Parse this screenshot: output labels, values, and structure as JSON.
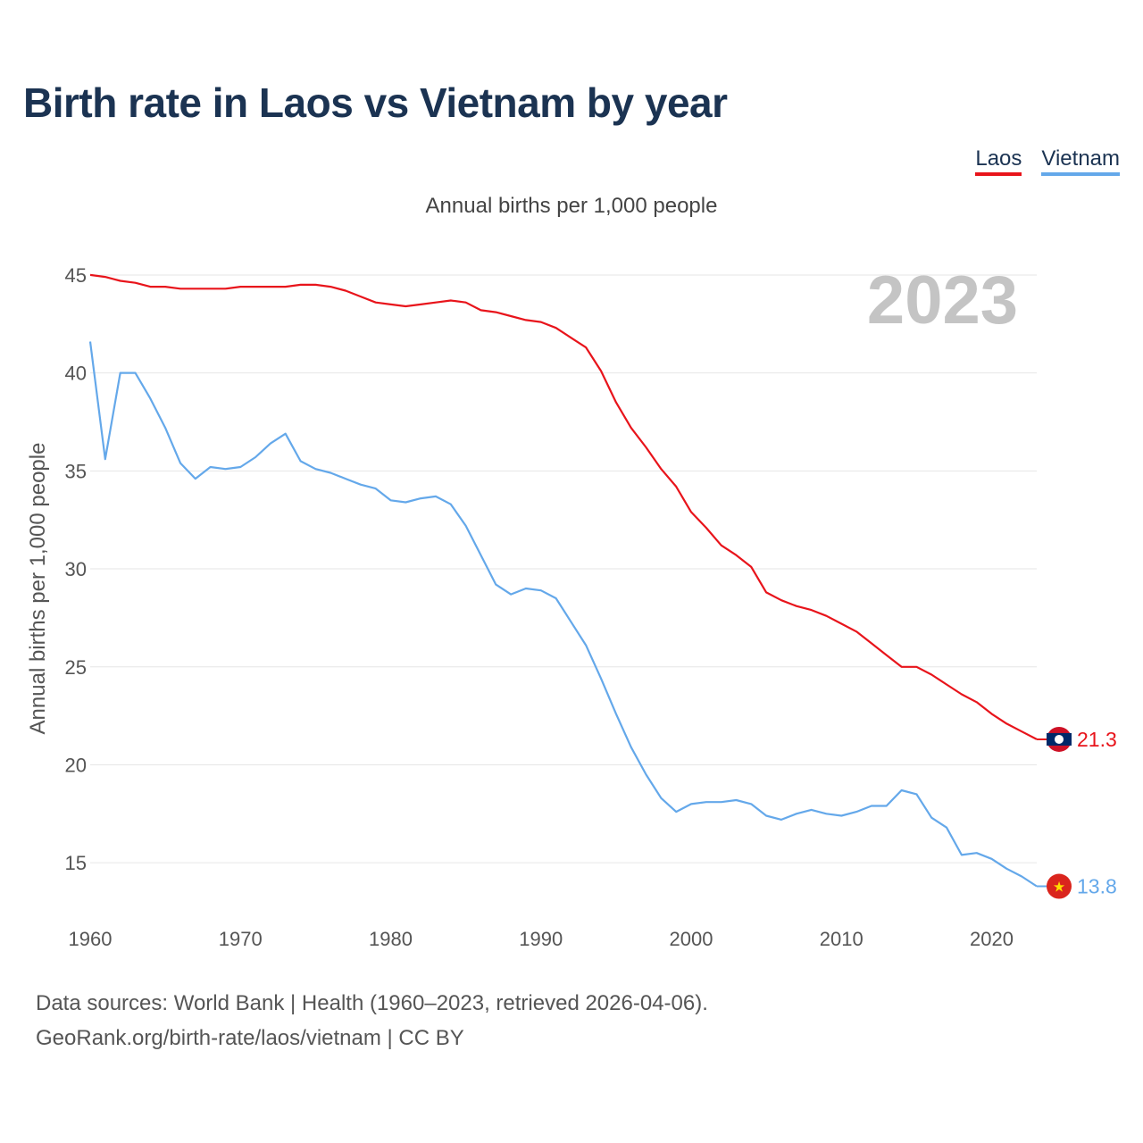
{
  "title": "Birth rate in Laos vs Vietnam by year",
  "subtitle": "Annual births per 1,000 people",
  "legend": [
    {
      "name": "Laos",
      "color": "#e8141b"
    },
    {
      "name": "Vietnam",
      "color": "#64a8ea"
    }
  ],
  "footer": {
    "line1": "Data sources: World Bank | Health (1960–2023, retrieved 2026-04-06).",
    "line2": "GeoRank.org/birth-rate/laos/vietnam | CC BY"
  },
  "chart_data": {
    "type": "line",
    "title": "Birth rate in Laos vs Vietnam by year",
    "xlabel": "",
    "ylabel": "Annual births per 1,000 people",
    "xlim": [
      1960,
      2023
    ],
    "ylim": [
      12,
      46
    ],
    "xticks": [
      1960,
      1970,
      1980,
      1990,
      2000,
      2010,
      2020
    ],
    "yticks": [
      15,
      20,
      25,
      30,
      35,
      40,
      45
    ],
    "grid": true,
    "year_label": "2023",
    "series": [
      {
        "name": "Laos",
        "color": "#e8141b",
        "end_label": "21.3",
        "x": [
          1960,
          1961,
          1962,
          1963,
          1964,
          1965,
          1966,
          1967,
          1968,
          1969,
          1970,
          1971,
          1972,
          1973,
          1974,
          1975,
          1976,
          1977,
          1978,
          1979,
          1980,
          1981,
          1982,
          1983,
          1984,
          1985,
          1986,
          1987,
          1988,
          1989,
          1990,
          1991,
          1992,
          1993,
          1994,
          1995,
          1996,
          1997,
          1998,
          1999,
          2000,
          2001,
          2002,
          2003,
          2004,
          2005,
          2006,
          2007,
          2008,
          2009,
          2010,
          2011,
          2012,
          2013,
          2014,
          2015,
          2016,
          2017,
          2018,
          2019,
          2020,
          2021,
          2022,
          2023
        ],
        "values": [
          45.0,
          44.9,
          44.7,
          44.6,
          44.4,
          44.4,
          44.3,
          44.3,
          44.3,
          44.3,
          44.4,
          44.4,
          44.4,
          44.4,
          44.5,
          44.5,
          44.4,
          44.2,
          43.9,
          43.6,
          43.5,
          43.4,
          43.5,
          43.6,
          43.7,
          43.6,
          43.2,
          43.1,
          42.9,
          42.7,
          42.6,
          42.3,
          41.8,
          41.3,
          40.1,
          38.5,
          37.2,
          36.2,
          35.1,
          34.2,
          32.9,
          32.1,
          31.2,
          30.7,
          30.1,
          28.8,
          28.4,
          28.1,
          27.9,
          27.6,
          27.2,
          26.8,
          26.2,
          25.6,
          25.0,
          25.0,
          24.6,
          24.1,
          23.6,
          23.2,
          22.6,
          22.1,
          21.7,
          21.3
        ]
      },
      {
        "name": "Vietnam",
        "color": "#64a8ea",
        "end_label": "13.8",
        "x": [
          1960,
          1961,
          1962,
          1963,
          1964,
          1965,
          1966,
          1967,
          1968,
          1969,
          1970,
          1971,
          1972,
          1973,
          1974,
          1975,
          1976,
          1977,
          1978,
          1979,
          1980,
          1981,
          1982,
          1983,
          1984,
          1985,
          1986,
          1987,
          1988,
          1989,
          1990,
          1991,
          1992,
          1993,
          1994,
          1995,
          1996,
          1997,
          1998,
          1999,
          2000,
          2001,
          2002,
          2003,
          2004,
          2005,
          2006,
          2007,
          2008,
          2009,
          2010,
          2011,
          2012,
          2013,
          2014,
          2015,
          2016,
          2017,
          2018,
          2019,
          2020,
          2021,
          2022,
          2023
        ],
        "values": [
          41.6,
          35.6,
          40.0,
          40.0,
          38.7,
          37.2,
          35.4,
          34.6,
          35.2,
          35.1,
          35.2,
          35.7,
          36.4,
          36.9,
          35.5,
          35.1,
          34.9,
          34.6,
          34.3,
          34.1,
          33.5,
          33.4,
          33.6,
          33.7,
          33.3,
          32.2,
          30.7,
          29.2,
          28.7,
          29.0,
          28.9,
          28.5,
          27.3,
          26.1,
          24.4,
          22.6,
          20.9,
          19.5,
          18.3,
          17.6,
          18.0,
          18.1,
          18.1,
          18.2,
          18.0,
          17.4,
          17.2,
          17.5,
          17.7,
          17.5,
          17.4,
          17.6,
          17.9,
          17.9,
          18.7,
          18.5,
          17.3,
          16.8,
          15.4,
          15.5,
          15.2,
          14.7,
          14.3,
          13.8
        ]
      }
    ]
  }
}
